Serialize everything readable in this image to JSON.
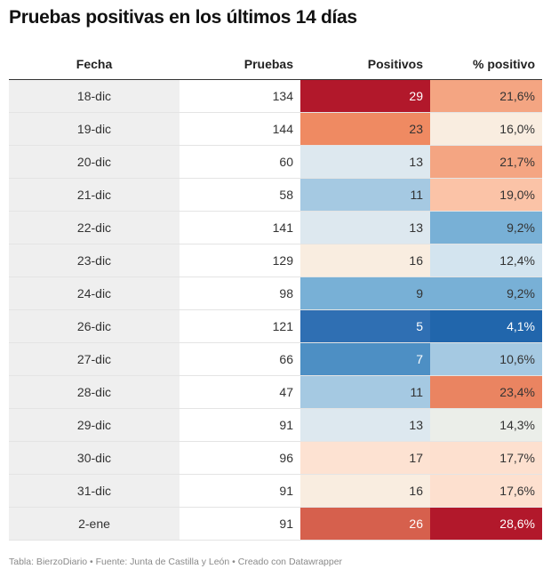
{
  "title": "Pruebas positivas en los últimos 14 días",
  "footer": "Tabla: BierzoDiario • Fuente: Junta de Castilla y León • Creado con Datawrapper",
  "chart_data": {
    "type": "table",
    "columns": [
      "Fecha",
      "Pruebas",
      "Positivos",
      "% positivo"
    ],
    "rows": [
      {
        "fecha": "18-dic",
        "pruebas": "134",
        "positivos": "29",
        "pct": "21,6%",
        "pos_color": "#b2182b",
        "pct_color": "#f4a582"
      },
      {
        "fecha": "19-dic",
        "pruebas": "144",
        "positivos": "23",
        "pct": "16,0%",
        "pos_color": "#ef8a62",
        "pct_color": "#f9ede0"
      },
      {
        "fecha": "20-dic",
        "pruebas": "60",
        "positivos": "13",
        "pct": "21,7%",
        "pos_color": "#dde8ef",
        "pct_color": "#f4a582"
      },
      {
        "fecha": "21-dic",
        "pruebas": "58",
        "positivos": "11",
        "pct": "19,0%",
        "pos_color": "#a5c9e2",
        "pct_color": "#fbc3a7"
      },
      {
        "fecha": "22-dic",
        "pruebas": "141",
        "positivos": "13",
        "pct": "9,2%",
        "pos_color": "#dde8ef",
        "pct_color": "#78b0d6"
      },
      {
        "fecha": "23-dic",
        "pruebas": "129",
        "positivos": "16",
        "pct": "12,4%",
        "pos_color": "#f9ede0",
        "pct_color": "#d3e4ef"
      },
      {
        "fecha": "24-dic",
        "pruebas": "98",
        "positivos": "9",
        "pct": "9,2%",
        "pos_color": "#78b0d6",
        "pct_color": "#78b0d6"
      },
      {
        "fecha": "26-dic",
        "pruebas": "121",
        "positivos": "5",
        "pct": "4,1%",
        "pos_color": "#2f6fb3",
        "pct_color": "#2166ac"
      },
      {
        "fecha": "27-dic",
        "pruebas": "66",
        "positivos": "7",
        "pct": "10,6%",
        "pos_color": "#4d8fc4",
        "pct_color": "#a5c9e2"
      },
      {
        "fecha": "28-dic",
        "pruebas": "47",
        "positivos": "11",
        "pct": "23,4%",
        "pos_color": "#a5c9e2",
        "pct_color": "#ea8461"
      },
      {
        "fecha": "29-dic",
        "pruebas": "91",
        "positivos": "13",
        "pct": "14,3%",
        "pos_color": "#dde8ef",
        "pct_color": "#ebeee9"
      },
      {
        "fecha": "30-dic",
        "pruebas": "96",
        "positivos": "17",
        "pct": "17,7%",
        "pos_color": "#fde2d2",
        "pct_color": "#fde0cf"
      },
      {
        "fecha": "31-dic",
        "pruebas": "91",
        "positivos": "16",
        "pct": "17,6%",
        "pos_color": "#f9ede0",
        "pct_color": "#fde0cf"
      },
      {
        "fecha": "2-ene",
        "pruebas": "91",
        "positivos": "26",
        "pct": "28,6%",
        "pos_color": "#d6604d",
        "pct_color": "#b2182b"
      }
    ]
  }
}
